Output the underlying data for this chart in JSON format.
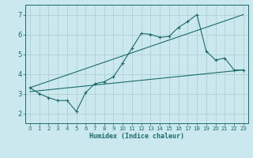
{
  "xlabel": "Humidex (Indice chaleur)",
  "bg_color": "#cce8ef",
  "grid_color": "#aacccc",
  "line_color": "#1a6b6b",
  "xlim": [
    -0.5,
    23.5
  ],
  "ylim": [
    1.5,
    7.5
  ],
  "xticks": [
    0,
    1,
    2,
    3,
    4,
    5,
    6,
    7,
    8,
    9,
    10,
    11,
    12,
    13,
    14,
    15,
    16,
    17,
    18,
    19,
    20,
    21,
    22,
    23
  ],
  "yticks": [
    2,
    3,
    4,
    5,
    6,
    7
  ],
  "line1_x": [
    0,
    1,
    2,
    3,
    4,
    5,
    6,
    7,
    8,
    9,
    10,
    11,
    12,
    13,
    14,
    15,
    16,
    17,
    18,
    19,
    20,
    21,
    22,
    23
  ],
  "line1_y": [
    3.3,
    3.0,
    2.8,
    2.65,
    2.65,
    2.1,
    3.05,
    3.5,
    3.6,
    3.85,
    4.55,
    5.3,
    6.05,
    6.0,
    5.85,
    5.9,
    6.35,
    6.65,
    7.0,
    5.15,
    4.7,
    4.8,
    4.2,
    4.2
  ],
  "line2_x": [
    0,
    23
  ],
  "line2_y": [
    3.3,
    7.0
  ],
  "line3_x": [
    0,
    23
  ],
  "line3_y": [
    3.1,
    4.2
  ]
}
